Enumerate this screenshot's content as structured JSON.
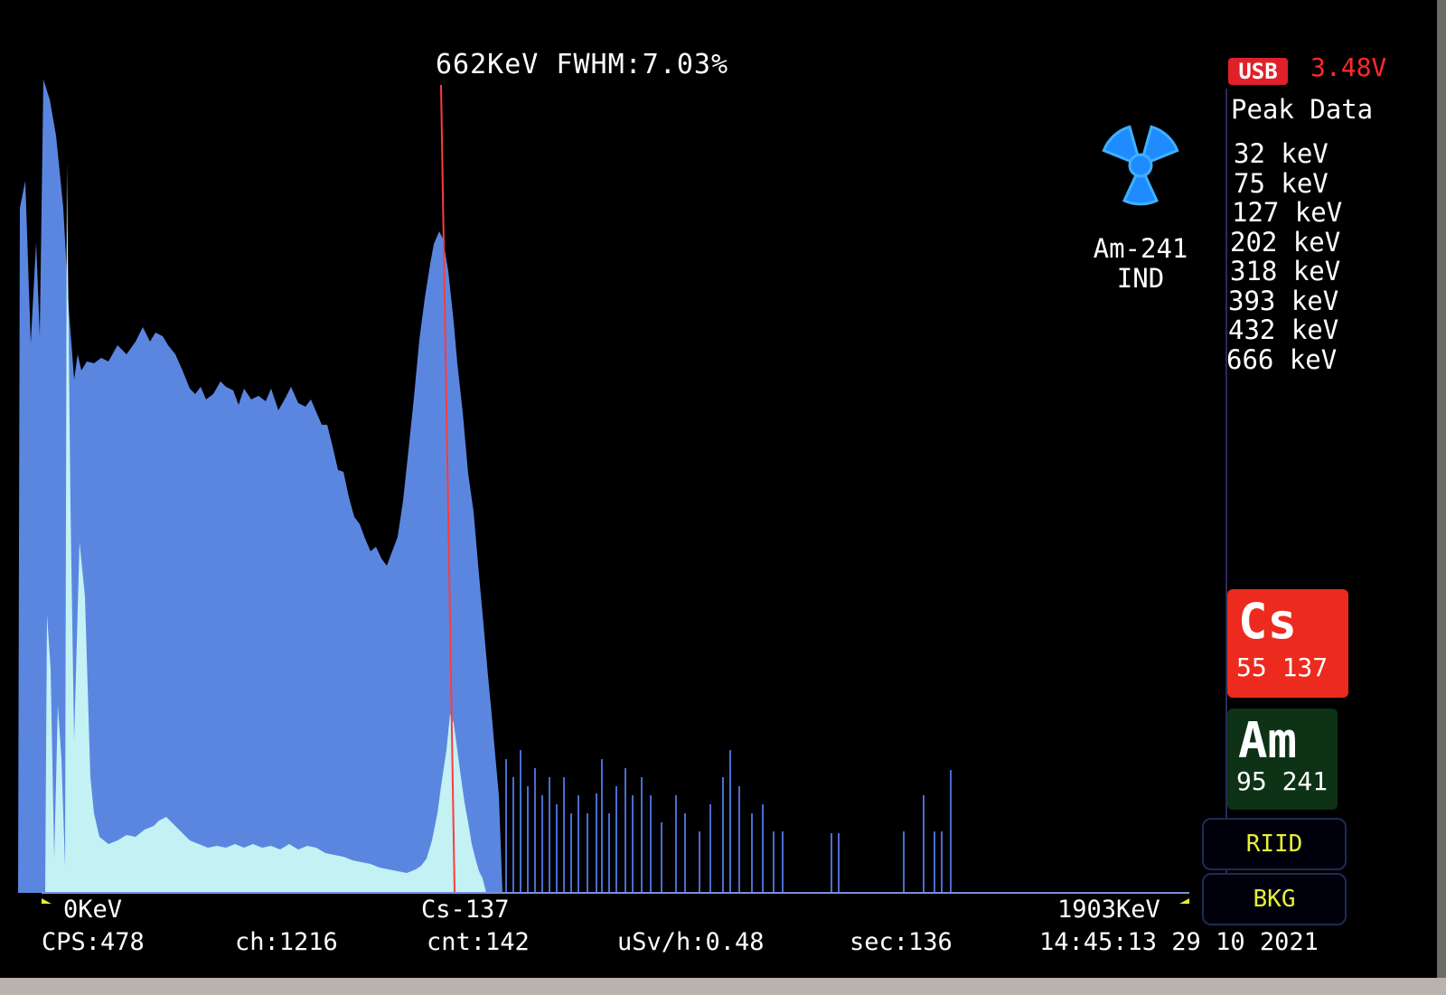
{
  "header": {
    "readout": "662KeV FWHM:7.03%"
  },
  "power": {
    "usb_label": "USB",
    "battery_voltage": "3.48V"
  },
  "peak_panel": {
    "title": "Peak Data",
    "peaks": [
      "32 keV",
      "75 keV",
      "127 keV",
      "202 keV",
      "318 keV",
      "393 keV",
      "432 keV",
      "666 keV"
    ]
  },
  "isotope": {
    "name": "Am-241",
    "status": "IND",
    "icon": "radiation-trefoil-icon"
  },
  "elements": [
    {
      "symbol": "Cs",
      "numbers": "55 137",
      "color": "#ec2a1d"
    },
    {
      "symbol": "Am",
      "numbers": "95 241",
      "color": "#0d3216"
    }
  ],
  "buttons": {
    "riid": "RIID",
    "bkg": "BKG"
  },
  "axis": {
    "left_label": "0KeV",
    "center_label": "Cs-137",
    "right_label": "1903KeV"
  },
  "status_bar": {
    "cps": "CPS:478",
    "channel": "ch:1216",
    "count": "cnt:142",
    "dose": "uSv/h:0.48",
    "seconds": "sec:136",
    "datetime": "14:45:13 29 10 2021"
  },
  "colors": {
    "spectrum_main": "#5b86e0",
    "spectrum_light": "#c4f1f4",
    "marker_line": "#ff3b3b",
    "button_text": "#e8ef38",
    "axis_marker": "#e6ee30"
  }
}
